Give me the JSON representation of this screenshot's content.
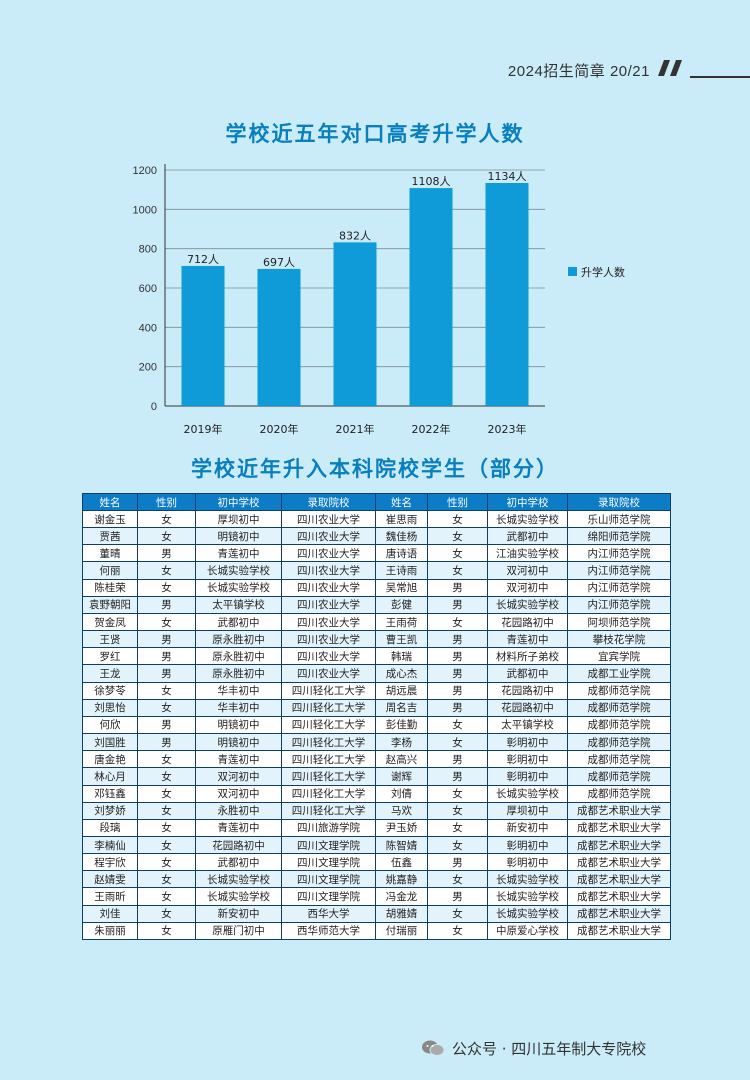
{
  "header": {
    "text": "2024招生简章 20/21"
  },
  "chart_data": {
    "type": "bar",
    "title": "学校近五年对口高考升学人数",
    "categories": [
      "2019年",
      "2020年",
      "2021年",
      "2022年",
      "2023年"
    ],
    "series": [
      {
        "name": "升学人数",
        "values": [
          712,
          697,
          832,
          1108,
          1134
        ],
        "labels": [
          "712人",
          "697人",
          "832人",
          "1108人",
          "1134人"
        ]
      }
    ],
    "ylim": [
      0,
      1200
    ],
    "yticks": [
      0,
      200,
      400,
      600,
      800,
      1000,
      1200
    ],
    "grid": true,
    "legend": "right",
    "color": "#0f9ad8"
  },
  "table": {
    "title": "学校近年升入本科院校学生（部分）",
    "headers": [
      "姓名",
      "性别",
      "初中学校",
      "录取院校",
      "姓名",
      "性别",
      "初中学校",
      "录取院校"
    ],
    "rows": [
      [
        "谢金玉",
        "女",
        "厚坝初中",
        "四川农业大学",
        "崔思雨",
        "女",
        "长城实验学校",
        "乐山师范学院"
      ],
      [
        "贾茜",
        "女",
        "明镜初中",
        "四川农业大学",
        "魏佳杨",
        "女",
        "武都初中",
        "绵阳师范学院"
      ],
      [
        "董晴",
        "男",
        "青莲初中",
        "四川农业大学",
        "唐诗语",
        "女",
        "江油实验学校",
        "内江师范学院"
      ],
      [
        "何丽",
        "女",
        "长城实验学校",
        "四川农业大学",
        "王诗雨",
        "女",
        "双河初中",
        "内江师范学院"
      ],
      [
        "陈桂荣",
        "女",
        "长城实验学校",
        "四川农业大学",
        "吴常旭",
        "男",
        "双河初中",
        "内江师范学院"
      ],
      [
        "袁野朝阳",
        "男",
        "太平镇学校",
        "四川农业大学",
        "彭健",
        "男",
        "长城实验学校",
        "内江师范学院"
      ],
      [
        "贺金凤",
        "女",
        "武都初中",
        "四川农业大学",
        "王雨荷",
        "女",
        "花园路初中",
        "阿坝师范学院"
      ],
      [
        "王贤",
        "男",
        "原永胜初中",
        "四川农业大学",
        "曹王凯",
        "男",
        "青莲初中",
        "攀枝花学院"
      ],
      [
        "罗红",
        "男",
        "原永胜初中",
        "四川农业大学",
        "韩瑞",
        "男",
        "材料所子弟校",
        "宜宾学院"
      ],
      [
        "王龙",
        "男",
        "原永胜初中",
        "四川农业大学",
        "成心杰",
        "男",
        "武都初中",
        "成都工业学院"
      ],
      [
        "徐梦苓",
        "女",
        "华丰初中",
        "四川轻化工大学",
        "胡远晨",
        "男",
        "花园路初中",
        "成都师范学院"
      ],
      [
        "刘思怡",
        "女",
        "华丰初中",
        "四川轻化工大学",
        "周名吉",
        "男",
        "花园路初中",
        "成都师范学院"
      ],
      [
        "何欣",
        "男",
        "明镜初中",
        "四川轻化工大学",
        "彭佳勤",
        "女",
        "太平镇学校",
        "成都师范学院"
      ],
      [
        "刘国胜",
        "男",
        "明镜初中",
        "四川轻化工大学",
        "李杨",
        "女",
        "彰明初中",
        "成都师范学院"
      ],
      [
        "唐金艳",
        "女",
        "青莲初中",
        "四川轻化工大学",
        "赵高兴",
        "男",
        "彰明初中",
        "成都师范学院"
      ],
      [
        "林心月",
        "女",
        "双河初中",
        "四川轻化工大学",
        "谢辉",
        "男",
        "彰明初中",
        "成都师范学院"
      ],
      [
        "邓钰鑫",
        "女",
        "双河初中",
        "四川轻化工大学",
        "刘倩",
        "女",
        "长城实验学校",
        "成都师范学院"
      ],
      [
        "刘梦娇",
        "女",
        "永胜初中",
        "四川轻化工大学",
        "马欢",
        "女",
        "厚坝初中",
        "成都艺术职业大学"
      ],
      [
        "段璃",
        "女",
        "青莲初中",
        "四川旅游学院",
        "尹玉娇",
        "女",
        "新安初中",
        "成都艺术职业大学"
      ],
      [
        "李楠仙",
        "女",
        "花园路初中",
        "四川文理学院",
        "陈智婧",
        "女",
        "彰明初中",
        "成都艺术职业大学"
      ],
      [
        "程宇欣",
        "女",
        "武都初中",
        "四川文理学院",
        "伍鑫",
        "男",
        "彰明初中",
        "成都艺术职业大学"
      ],
      [
        "赵婧雯",
        "女",
        "长城实验学校",
        "四川文理学院",
        "姚嘉静",
        "女",
        "长城实验学校",
        "成都艺术职业大学"
      ],
      [
        "王雨昕",
        "女",
        "长城实验学校",
        "四川文理学院",
        "冯金龙",
        "男",
        "长城实验学校",
        "成都艺术职业大学"
      ],
      [
        "刘佳",
        "女",
        "新安初中",
        "西华大学",
        "胡雅婧",
        "女",
        "长城实验学校",
        "成都艺术职业大学"
      ],
      [
        "朱丽丽",
        "女",
        "原雁门初中",
        "西华师范大学",
        "付瑞丽",
        "女",
        "中原爱心学校",
        "成都艺术职业大学"
      ]
    ]
  },
  "footer": {
    "text": "公众号 · 四川五年制大专院校",
    "icon": "wechat-icon"
  }
}
